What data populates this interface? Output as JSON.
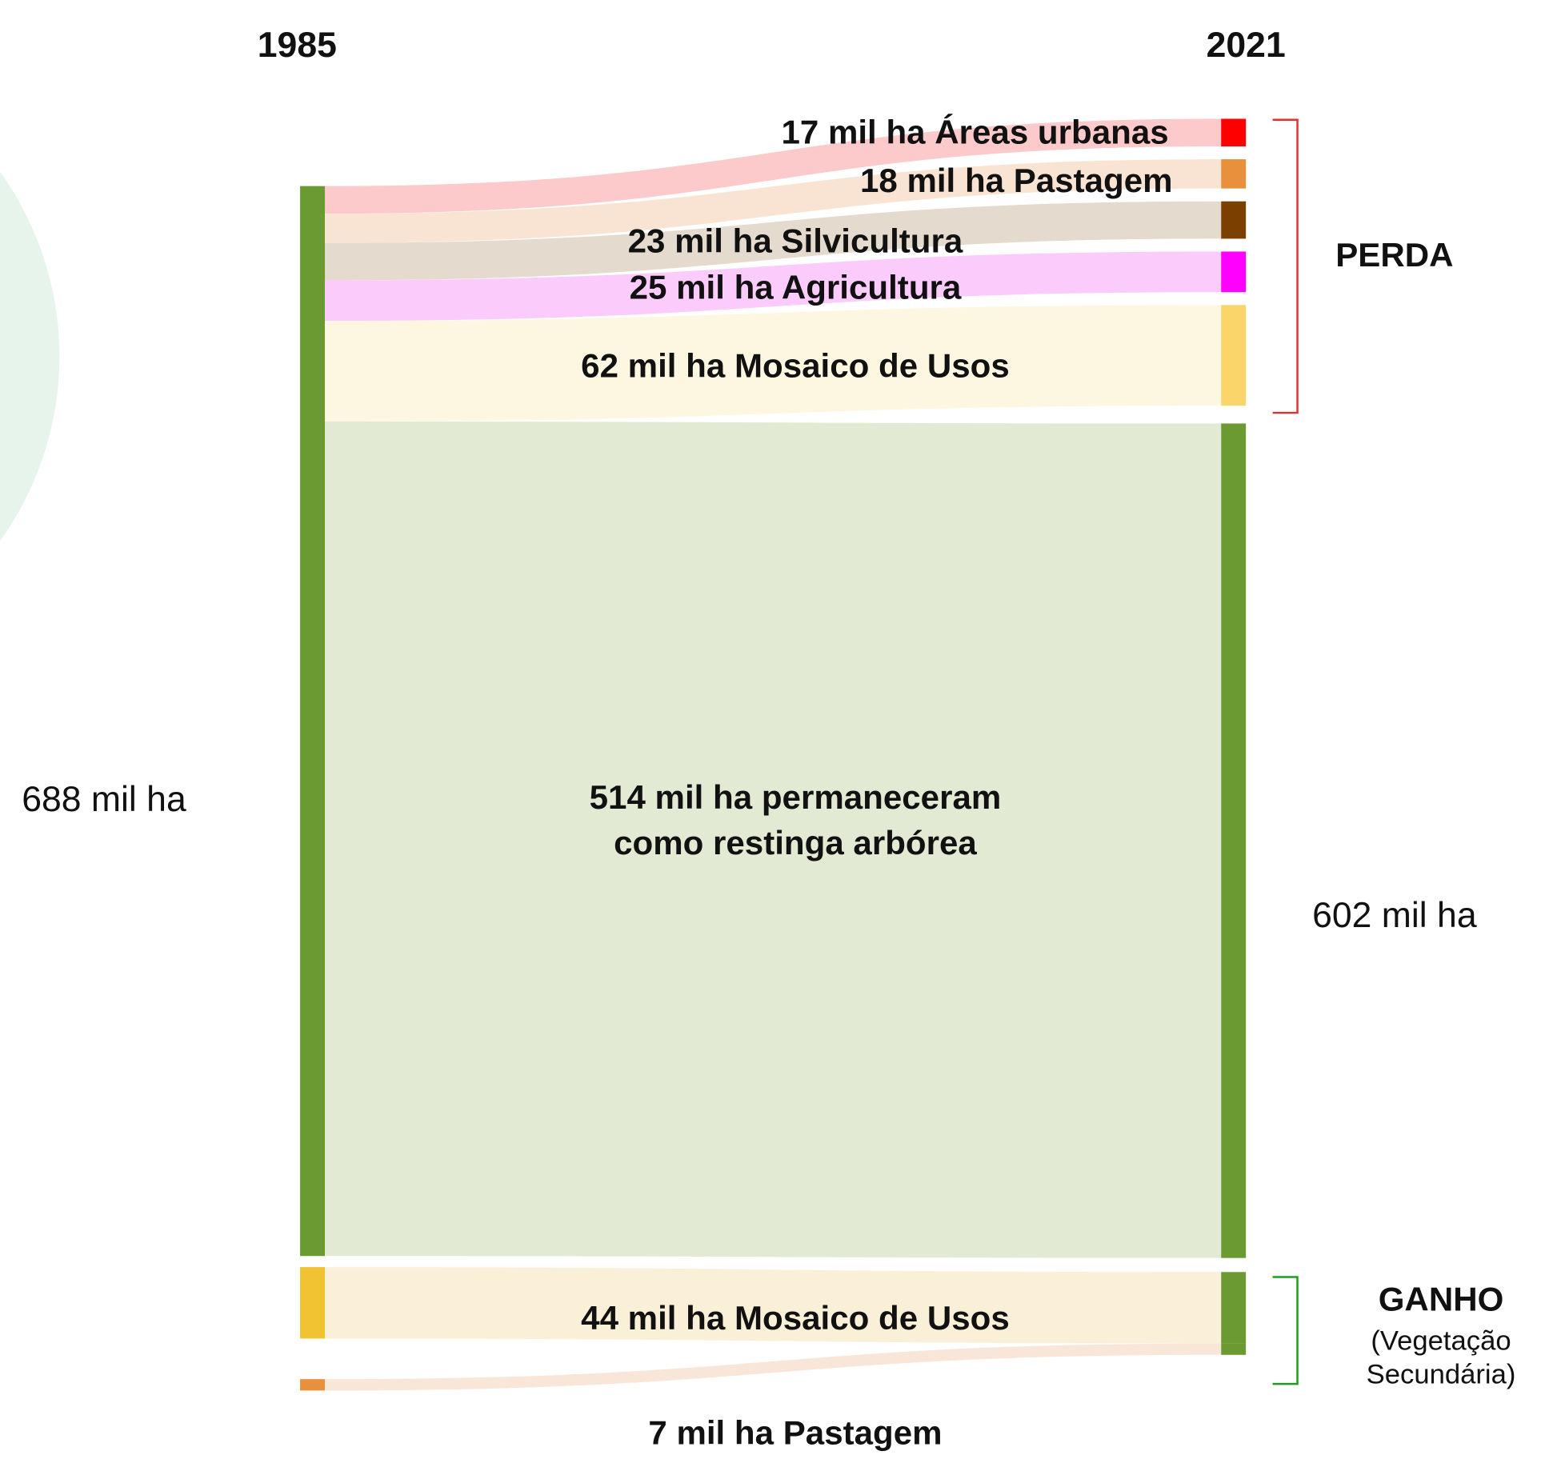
{
  "chart_data": {
    "type": "sankey",
    "left_title": "1985",
    "right_title": "2021",
    "left_node": {
      "value": 688,
      "label": "688 mil ha",
      "color": "#6b9a33"
    },
    "right_node": {
      "value": 602,
      "label": "602 mil ha",
      "color": "#6b9a33"
    },
    "loss_label": "PERDA",
    "loss_color": "#ff1010",
    "gain_label": "GANHO",
    "gain_note": [
      "(Vegetação",
      "Secundária)"
    ],
    "gain_color": "#1c9e1c",
    "links": [
      {
        "value": 17,
        "label": "17 mil ha Áreas urbanas",
        "color": "#fccaca",
        "source_color": "#6b9a33",
        "target_color": "#ff0000"
      },
      {
        "value": 18,
        "label": "18 mil ha Pastagem",
        "color": "#f9e4d3",
        "source_color": "#6b9a33",
        "target_color": "#e8903c"
      },
      {
        "value": 23,
        "label": "23 mil ha Silvicultura",
        "color": "#e4dacd",
        "source_color": "#6b9a33",
        "target_color": "#7b3f00"
      },
      {
        "value": 25,
        "label": "25 mil ha Agricultura",
        "color": "#fbcbfb",
        "source_color": "#6b9a33",
        "target_color": "#ff00ff"
      },
      {
        "value": 62,
        "label": "62 mil ha Mosaico de Usos",
        "color": "#fdf6e1",
        "source_color": "#6b9a33",
        "target_color": "#fad56a"
      },
      {
        "value": 514,
        "label": [
          "514 mil ha permaneceram",
          "como restinga arbórea"
        ],
        "color": "#e2ead4",
        "source_color": "#6b9a33",
        "target_color": "#6b9a33"
      },
      {
        "value": 44,
        "label": "44 mil ha Mosaico de Usos",
        "color": "#faf0d7",
        "source_color": "#f1c232",
        "target_color": "#6b9a33"
      },
      {
        "value": 7,
        "label": "7 mil ha Pastagem",
        "color": "#f8e6d8",
        "source_color": "#e8903c",
        "target_color": "#6b9a33"
      }
    ]
  }
}
